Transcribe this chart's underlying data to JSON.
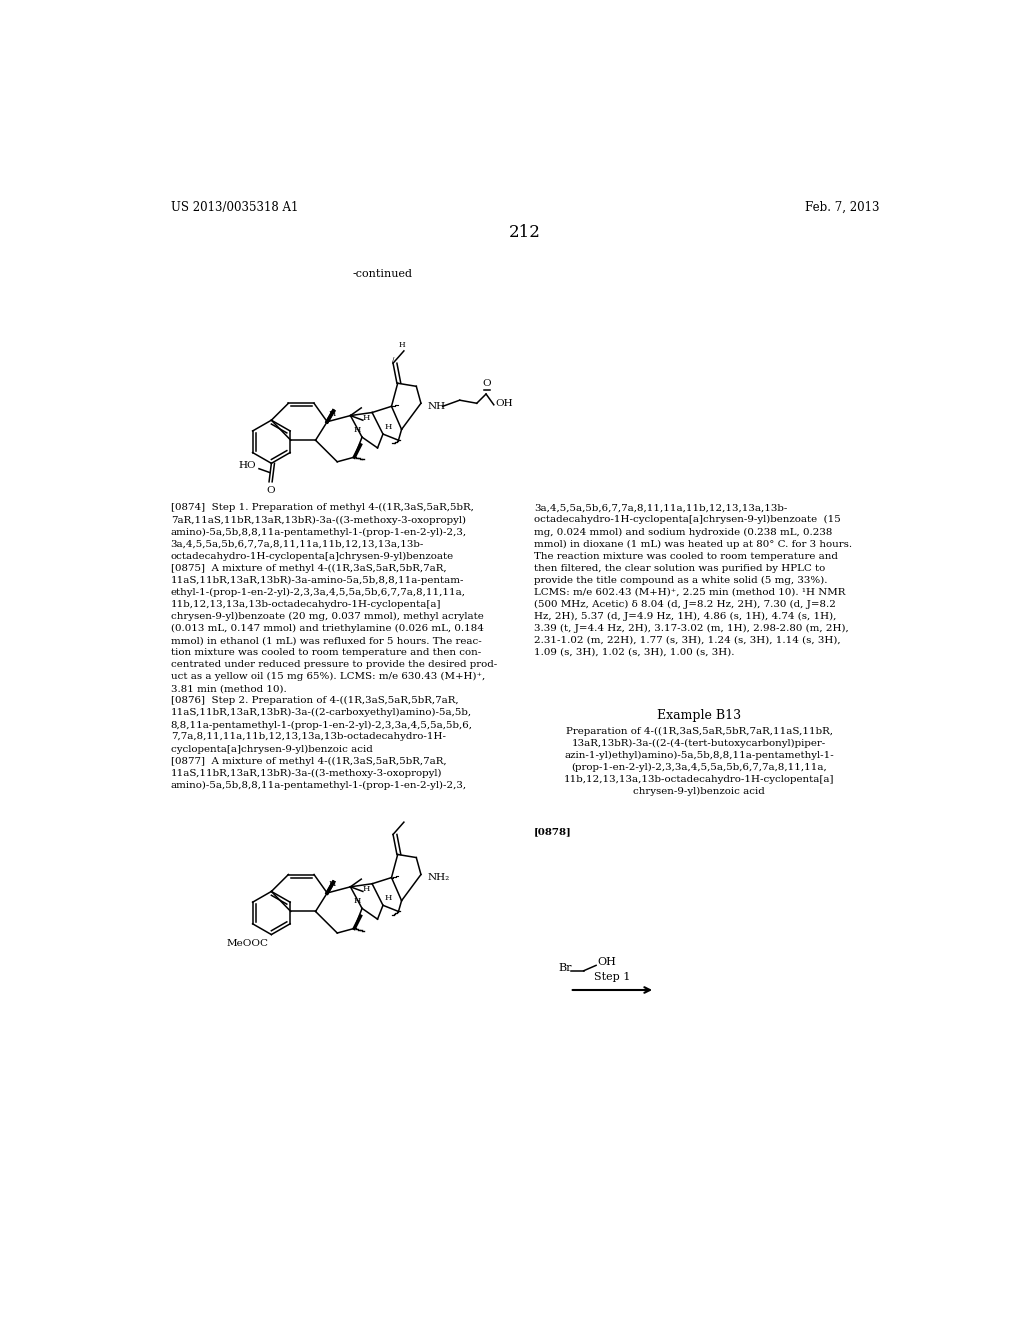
{
  "patent_number": "US 2013/0035318 A1",
  "date": "Feb. 7, 2013",
  "page_number": "212",
  "continued_label": "-continued",
  "background_color": "#ffffff",
  "text_color": "#000000"
}
